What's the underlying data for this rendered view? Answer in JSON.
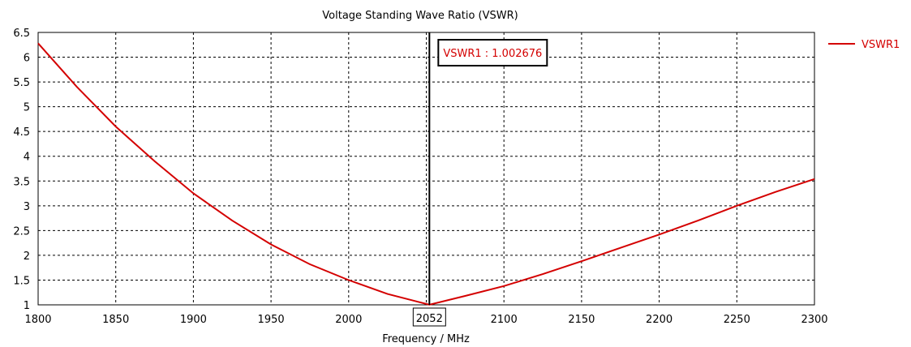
{
  "chart_data": {
    "type": "line",
    "title": "Voltage Standing Wave Ratio (VSWR)",
    "xlabel": "Frequency / MHz",
    "ylabel": "",
    "xlim": [
      1800,
      2300
    ],
    "ylim": [
      1,
      6.5
    ],
    "grid": true,
    "x_ticks": [
      "1800",
      "1850",
      "1900",
      "1950",
      "2000",
      "2050",
      "2100",
      "2150",
      "2200",
      "2250",
      "2300"
    ],
    "x_tick_values": [
      1800,
      1850,
      1900,
      1950,
      2000,
      2050,
      2100,
      2150,
      2200,
      2250,
      2300
    ],
    "y_ticks": [
      "1",
      "1.5",
      "2",
      "2.5",
      "3",
      "3.5",
      "4",
      "4.5",
      "5",
      "5.5",
      "6",
      "6.5"
    ],
    "y_tick_values": [
      1,
      1.5,
      2,
      2.5,
      3,
      3.5,
      4,
      4.5,
      5,
      5.5,
      6,
      6.5
    ],
    "legend": {
      "position": "top-right",
      "entries": [
        "VSWR1"
      ]
    },
    "series": [
      {
        "name": "VSWR1",
        "color": "#d40000",
        "x": [
          1800,
          1825,
          1850,
          1875,
          1900,
          1925,
          1950,
          1975,
          2000,
          2025,
          2052,
          2075,
          2100,
          2125,
          2150,
          2175,
          2200,
          2225,
          2250,
          2275,
          2300
        ],
        "y": [
          6.28,
          5.4,
          4.6,
          3.9,
          3.25,
          2.7,
          2.22,
          1.82,
          1.5,
          1.22,
          1.002676,
          1.18,
          1.38,
          1.62,
          1.88,
          2.15,
          2.42,
          2.7,
          3.0,
          3.28,
          3.54
        ]
      }
    ],
    "marker": {
      "x": 2052,
      "x_label": "2052",
      "label": "VSWR1 : 1.002676"
    }
  }
}
